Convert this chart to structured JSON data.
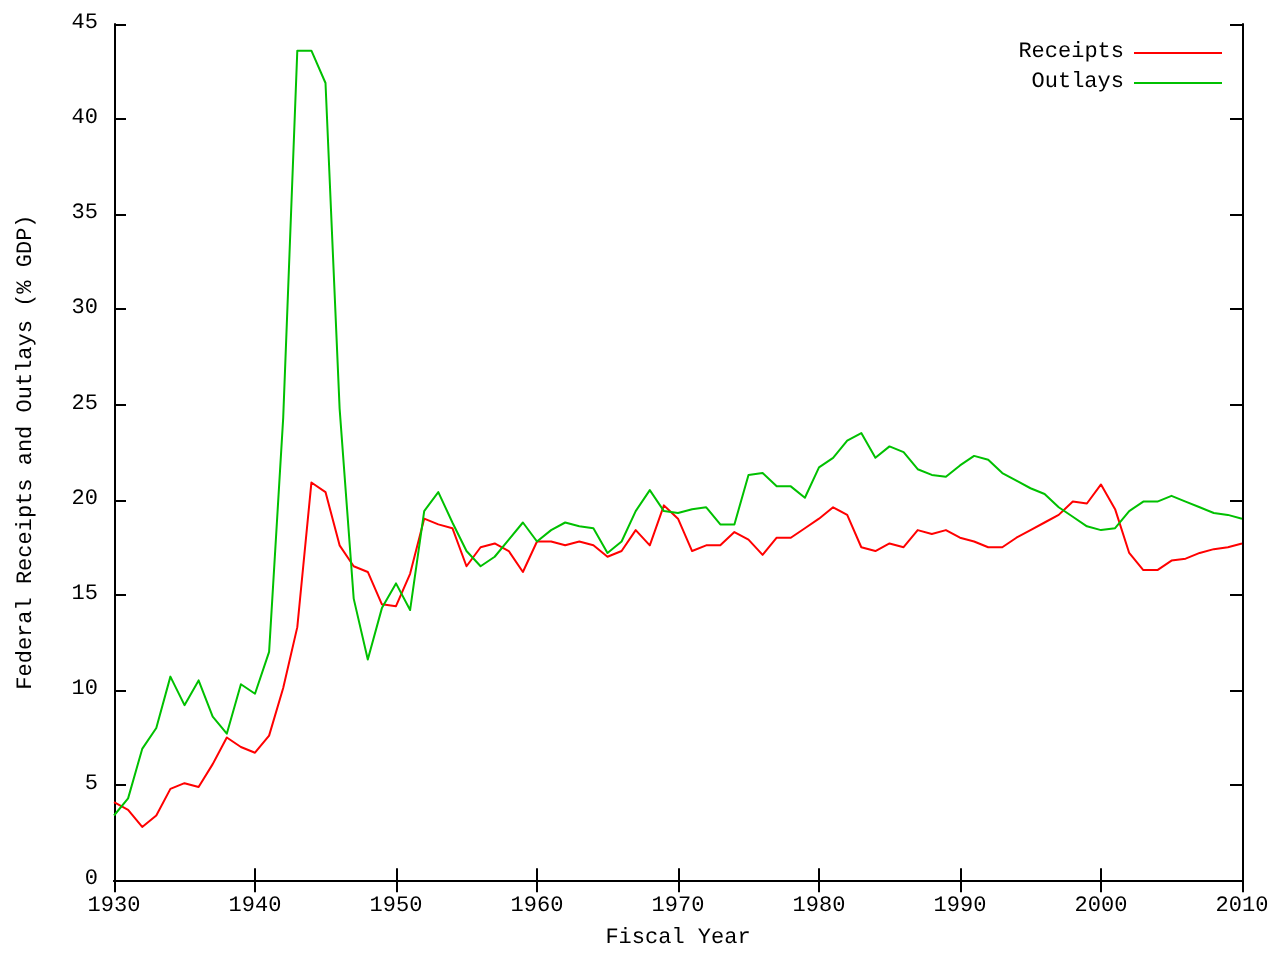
{
  "chart_data": {
    "type": "line",
    "xlabel": "Fiscal Year",
    "ylabel": "Federal Receipts and Outlays (% GDP)",
    "x": [
      1930,
      1931,
      1932,
      1933,
      1934,
      1935,
      1936,
      1937,
      1938,
      1939,
      1940,
      1941,
      1942,
      1943,
      1944,
      1945,
      1946,
      1947,
      1948,
      1949,
      1950,
      1951,
      1952,
      1953,
      1954,
      1955,
      1956,
      1957,
      1958,
      1959,
      1960,
      1961,
      1962,
      1963,
      1964,
      1965,
      1966,
      1967,
      1968,
      1969,
      1970,
      1971,
      1972,
      1973,
      1974,
      1975,
      1976,
      1977,
      1978,
      1979,
      1980,
      1981,
      1982,
      1983,
      1984,
      1985,
      1986,
      1987,
      1988,
      1989,
      1990,
      1991,
      1992,
      1993,
      1994,
      1995,
      1996,
      1997,
      1998,
      1999,
      2000,
      2001,
      2002,
      2003,
      2004,
      2005,
      2006,
      2007,
      2008,
      2009,
      2010
    ],
    "series": [
      {
        "name": "Receipts",
        "color": "#ff0000",
        "values": [
          4.1,
          3.7,
          2.8,
          3.4,
          4.8,
          5.1,
          4.9,
          6.1,
          7.5,
          7.0,
          6.7,
          7.6,
          10.1,
          13.3,
          20.9,
          20.4,
          17.6,
          16.5,
          16.2,
          14.5,
          14.4,
          16.1,
          19.0,
          18.7,
          18.5,
          16.5,
          17.5,
          17.7,
          17.3,
          16.2,
          17.8,
          17.8,
          17.6,
          17.8,
          17.6,
          17.0,
          17.3,
          18.4,
          17.6,
          19.7,
          19.0,
          17.3,
          17.6,
          17.6,
          18.3,
          17.9,
          17.1,
          18.0,
          18.0,
          18.5,
          19.0,
          19.6,
          19.2,
          17.5,
          17.3,
          17.7,
          17.5,
          18.4,
          18.2,
          18.4,
          18.0,
          17.8,
          17.5,
          17.5,
          18.0,
          18.4,
          18.8,
          19.2,
          19.9,
          19.8,
          20.8,
          19.5,
          17.2,
          16.3,
          16.3,
          16.8,
          16.9,
          17.2,
          17.4,
          17.5,
          17.7
        ]
      },
      {
        "name": "Outlays",
        "color": "#00c000",
        "values": [
          3.4,
          4.3,
          6.9,
          8.0,
          10.7,
          9.2,
          10.5,
          8.6,
          7.7,
          10.3,
          9.8,
          12.0,
          24.3,
          43.6,
          43.6,
          41.9,
          24.8,
          14.8,
          11.6,
          14.3,
          15.6,
          14.2,
          19.4,
          20.4,
          18.8,
          17.3,
          16.5,
          17.0,
          17.9,
          18.8,
          17.8,
          18.4,
          18.8,
          18.6,
          18.5,
          17.2,
          17.8,
          19.4,
          20.5,
          19.4,
          19.3,
          19.5,
          19.6,
          18.7,
          18.7,
          21.3,
          21.4,
          20.7,
          20.7,
          20.1,
          21.7,
          22.2,
          23.1,
          23.5,
          22.2,
          22.8,
          22.5,
          21.6,
          21.3,
          21.2,
          21.8,
          22.3,
          22.1,
          21.4,
          21.0,
          20.6,
          20.3,
          19.6,
          19.1,
          18.6,
          18.4,
          18.5,
          19.4,
          19.9,
          19.9,
          20.2,
          19.9,
          19.6,
          19.3,
          19.2,
          19.0
        ]
      }
    ],
    "xlim": [
      1930,
      2010
    ],
    "xticks": [
      1930,
      1940,
      1950,
      1960,
      1970,
      1980,
      1990,
      2000,
      2010
    ],
    "ylim": [
      0,
      45
    ],
    "yticks": [
      0,
      5,
      10,
      15,
      20,
      25,
      30,
      35,
      40,
      45
    ],
    "grid": false,
    "legend": "top right",
    "marker": "none",
    "line_style": "solid"
  }
}
